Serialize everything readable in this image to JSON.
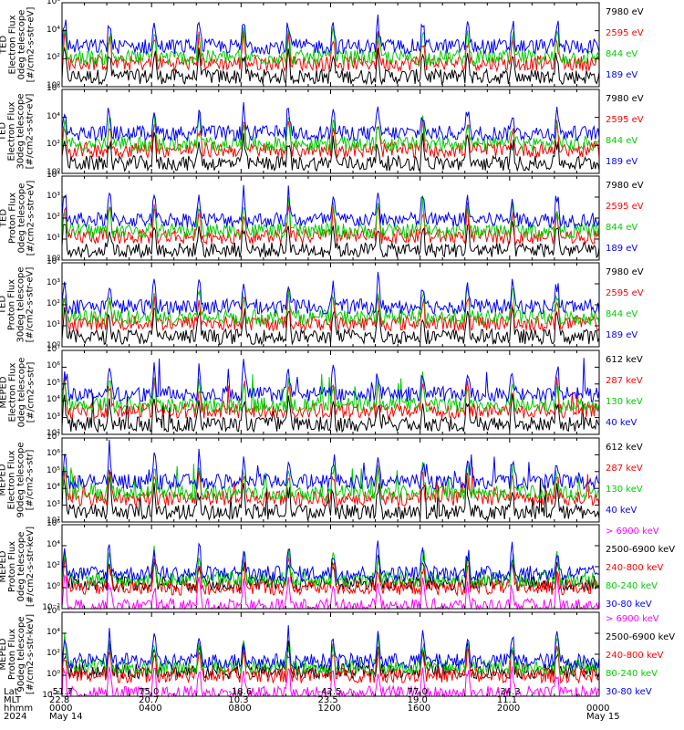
{
  "chart_data": {
    "type": "line",
    "panels": [
      {
        "ylabel": [
          "TED",
          "Electron Flux",
          "0deg telescope",
          "[#/cm2-s-str-eV]"
        ],
        "yticks": [
          "10⁶",
          "10⁴",
          "10²",
          "10⁰"
        ],
        "ylim_exponent": [
          0,
          6
        ],
        "series": [
          {
            "name": "7980 eV",
            "color": "#000000"
          },
          {
            "name": "2595 eV",
            "color": "#ff0000"
          },
          {
            "name": "844 eV",
            "color": "#00cc00"
          },
          {
            "name": "189 eV",
            "color": "#0000ff"
          }
        ]
      },
      {
        "ylabel": [
          "TED",
          "Electron Flux",
          "30deg telescope",
          "[#/cm2-s-str-eV]"
        ],
        "yticks": [
          "10⁶",
          "10⁴",
          "10²",
          "10⁰"
        ],
        "ylim_exponent": [
          0,
          6
        ],
        "series": [
          {
            "name": "7980 eV",
            "color": "#000000"
          },
          {
            "name": "2595 eV",
            "color": "#ff0000"
          },
          {
            "name": "844 eV",
            "color": "#00cc00"
          },
          {
            "name": "189 eV",
            "color": "#0000ff"
          }
        ]
      },
      {
        "ylabel": [
          "TED",
          "Proton Flux",
          "0deg telescope",
          "[#/cm2-s-str-eV]"
        ],
        "yticks": [
          "10⁴",
          "10³",
          "10²",
          "10¹",
          "10⁰"
        ],
        "ylim_exponent": [
          0,
          4
        ],
        "series": [
          {
            "name": "7980 eV",
            "color": "#000000"
          },
          {
            "name": "2595 eV",
            "color": "#ff0000"
          },
          {
            "name": "844 eV",
            "color": "#00cc00"
          },
          {
            "name": "189 eV",
            "color": "#0000ff"
          }
        ]
      },
      {
        "ylabel": [
          "TED",
          "Proton Flux",
          "30deg telescope",
          "[#/cm2-s-str-eV]"
        ],
        "yticks": [
          "10⁴",
          "10³",
          "10²",
          "10¹",
          "10⁰"
        ],
        "ylim_exponent": [
          0,
          4
        ],
        "series": [
          {
            "name": "7980 eV",
            "color": "#000000"
          },
          {
            "name": "2595 eV",
            "color": "#ff0000"
          },
          {
            "name": "844 eV",
            "color": "#00cc00"
          },
          {
            "name": "189 eV",
            "color": "#0000ff"
          }
        ]
      },
      {
        "ylabel": [
          "MEPED",
          "Electron Flux",
          "0deg telescope",
          "[#/cm2-s-str]"
        ],
        "yticks": [
          "10⁷",
          "10⁶",
          "10⁵",
          "10⁴",
          "10³",
          "10²"
        ],
        "ylim_exponent": [
          2,
          7
        ],
        "series": [
          {
            "name": "612 keV",
            "color": "#000000"
          },
          {
            "name": "287 keV",
            "color": "#ff0000"
          },
          {
            "name": "130 keV",
            "color": "#00cc00"
          },
          {
            "name": "40 keV",
            "color": "#0000ff"
          }
        ]
      },
      {
        "ylabel": [
          "MEPED",
          "Electron Flux",
          "90deg telescope",
          "[#/cm2-s-str]"
        ],
        "yticks": [
          "10⁷",
          "10⁶",
          "10⁵",
          "10⁴",
          "10³",
          "10²"
        ],
        "ylim_exponent": [
          2,
          7
        ],
        "series": [
          {
            "name": "612 keV",
            "color": "#000000"
          },
          {
            "name": "287 keV",
            "color": "#ff0000"
          },
          {
            "name": "130 keV",
            "color": "#00cc00"
          },
          {
            "name": "40 keV",
            "color": "#0000ff"
          }
        ]
      },
      {
        "ylabel": [
          "MEPED",
          "Proton Flux",
          "0deg telescope",
          "[#/cm2-s-str-keV]"
        ],
        "yticks": [
          "10⁶",
          "10⁴",
          "10²",
          "10⁰",
          "10⁻²"
        ],
        "ylim_exponent": [
          -2,
          6
        ],
        "series": [
          {
            "name": "> 6900 keV",
            "color": "#ff00ff"
          },
          {
            "name": "2500-6900 keV",
            "color": "#000000"
          },
          {
            "name": "240-800 keV",
            "color": "#ff0000"
          },
          {
            "name": "80-240 keV",
            "color": "#00cc00"
          },
          {
            "name": "30-80 keV",
            "color": "#0000ff"
          }
        ]
      },
      {
        "ylabel": [
          "MEPED",
          "Proton Flux",
          "90deg telescope",
          "[#/cm2-s-str-keV]"
        ],
        "yticks": [
          "10⁶",
          "10⁴",
          "10²",
          "10⁰",
          "10⁻²"
        ],
        "ylim_exponent": [
          -2,
          6
        ],
        "series": [
          {
            "name": "> 6900 keV",
            "color": "#ff00ff"
          },
          {
            "name": "2500-6900 keV",
            "color": "#000000"
          },
          {
            "name": "240-800 keV",
            "color": "#ff0000"
          },
          {
            "name": "80-240 keV",
            "color": "#00cc00"
          },
          {
            "name": "30-80 keV",
            "color": "#0000ff"
          }
        ]
      }
    ],
    "x_axis": {
      "row_labels": [
        "Lat",
        "MLT",
        "hhmm",
        "2024"
      ],
      "ticks": [
        {
          "lat": "-51.7",
          "mlt": "22.8",
          "hhmm": "0000",
          "date": "May 14"
        },
        {
          "lat": "75.0",
          "mlt": "20.7",
          "hhmm": "0400",
          "date": ""
        },
        {
          "lat": "-18.6",
          "mlt": "10.3",
          "hhmm": "0800",
          "date": ""
        },
        {
          "lat": "-42.5",
          "mlt": "23.5",
          "hhmm": "1200",
          "date": ""
        },
        {
          "lat": "77.0",
          "mlt": "19.0",
          "hhmm": "1600",
          "date": ""
        },
        {
          "lat": "-34.3",
          "mlt": "11.1",
          "hhmm": "2000",
          "date": ""
        },
        {
          "lat": "",
          "mlt": "",
          "hhmm": "0000",
          "date": "May 15"
        }
      ]
    }
  }
}
